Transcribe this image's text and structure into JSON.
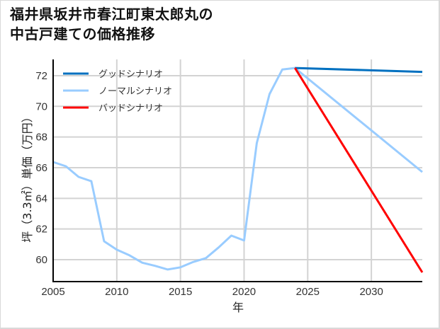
{
  "title_line1": "福井県坂井市春江町東太郎丸の",
  "title_line2": "中古戸建ての価格推移",
  "chart_data": {
    "type": "line",
    "title": "福井県坂井市春江町東太郎丸の中古戸建ての価格推移",
    "xlabel": "年",
    "ylabel": "坪（3.3㎡）単価（万円）",
    "xlim": [
      2005,
      2034
    ],
    "ylim": [
      58.57,
      73.06
    ],
    "xticks": [
      2005,
      2010,
      2015,
      2020,
      2025,
      2030
    ],
    "yticks": [
      60,
      62,
      64,
      66,
      68,
      70,
      72
    ],
    "grid": true,
    "legend_position": "upper left",
    "series": [
      {
        "name": "グッドシナリオ",
        "color": "#0070c0",
        "x": [
          2024,
          2034
        ],
        "values": [
          72.5,
          72.25
        ]
      },
      {
        "name": "ノーマルシナリオ",
        "color": "#99ccff",
        "x": [
          2005,
          2006,
          2007,
          2008,
          2009,
          2010,
          2011,
          2012,
          2013,
          2014,
          2015,
          2016,
          2017,
          2018,
          2019,
          2020,
          2021,
          2022,
          2023,
          2024,
          2034
        ],
        "values": [
          66.37,
          66.09,
          65.4,
          65.12,
          61.2,
          60.65,
          60.28,
          59.8,
          59.6,
          59.36,
          59.5,
          59.85,
          60.1,
          60.8,
          61.57,
          61.25,
          67.6,
          70.8,
          72.4,
          72.5,
          65.72
        ]
      },
      {
        "name": "バッドシナリオ",
        "color": "#ff0000",
        "x": [
          2024,
          2034
        ],
        "values": [
          72.5,
          59.17
        ]
      }
    ]
  }
}
